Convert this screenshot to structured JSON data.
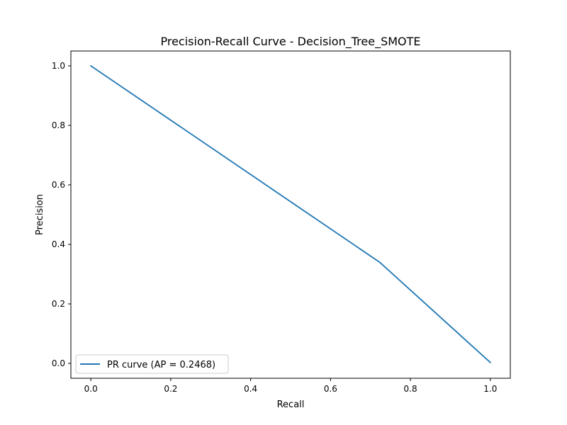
{
  "chart_data": {
    "type": "line",
    "title": "Precision-Recall Curve - Decision_Tree_SMOTE",
    "xlabel": "Recall",
    "ylabel": "Precision",
    "xlim": [
      -0.05,
      1.05
    ],
    "ylim": [
      -0.05,
      1.05
    ],
    "xticks": [
      0.0,
      0.2,
      0.4,
      0.6,
      0.8,
      1.0
    ],
    "yticks": [
      0.0,
      0.2,
      0.4,
      0.6,
      0.8,
      1.0
    ],
    "xtick_labels": [
      "0.0",
      "0.2",
      "0.4",
      "0.6",
      "0.8",
      "1.0"
    ],
    "ytick_labels": [
      "0.0",
      "0.2",
      "0.4",
      "0.6",
      "0.8",
      "1.0"
    ],
    "grid": false,
    "legend_position": "lower-left",
    "series": [
      {
        "name": "PR curve (AP = 0.2468)",
        "color": "#1f77b4",
        "x": [
          0.0,
          0.723,
          1.0
        ],
        "y": [
          1.0,
          0.34,
          0.003
        ]
      }
    ]
  }
}
